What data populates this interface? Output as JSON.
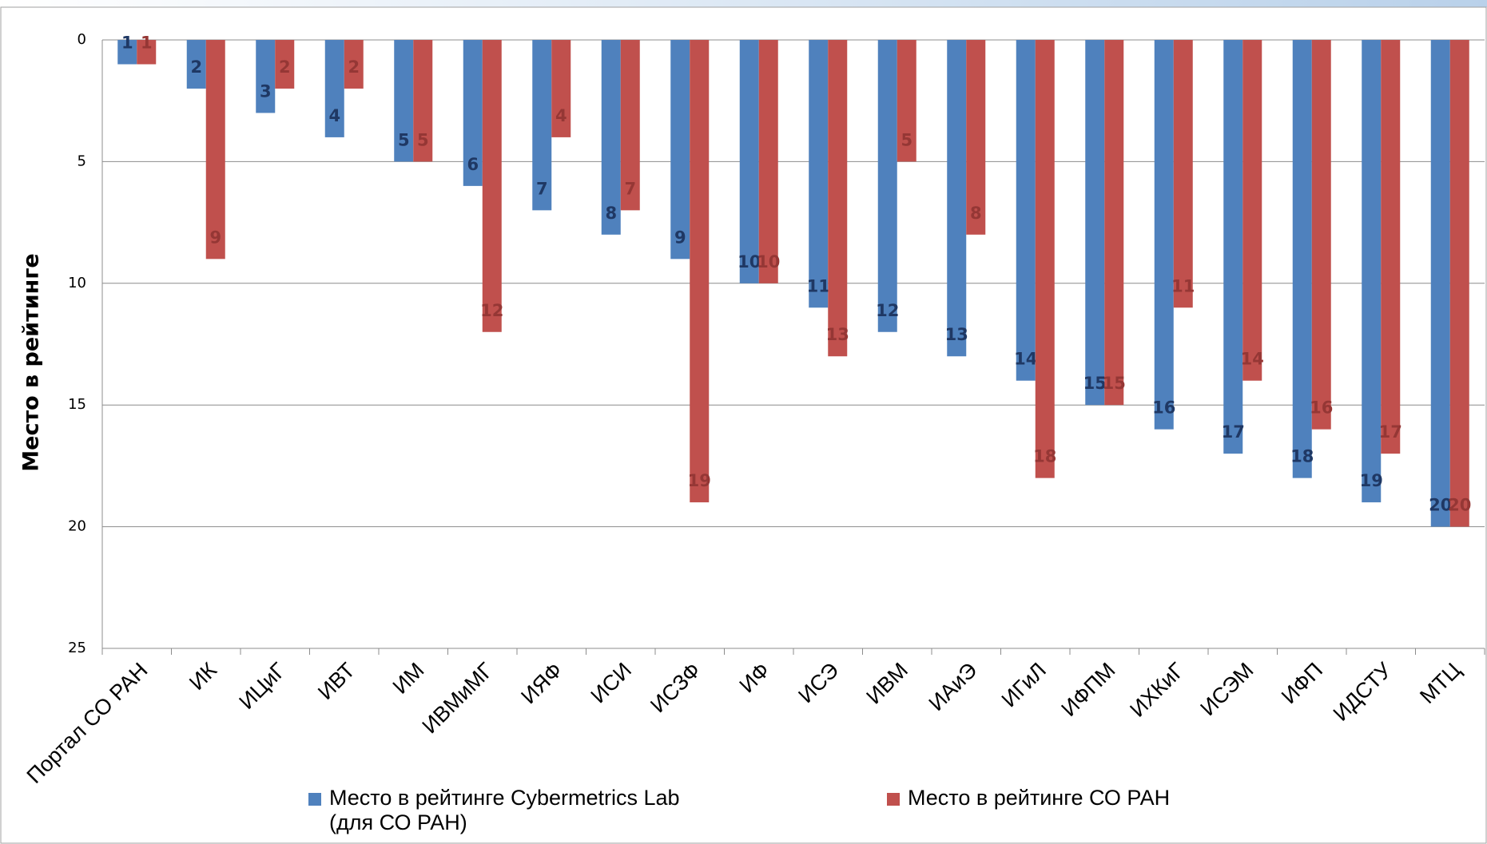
{
  "chart_data": {
    "type": "bar",
    "y_axis_label": "Место в рейтинге",
    "categories": [
      "Портал СО РАН",
      "ИК",
      "ИЦиГ",
      "ИВТ",
      "ИМ",
      "ИВМиМГ",
      "ИЯФ",
      "ИСИ",
      "ИСЗФ",
      "ИФ",
      "ИСЭ",
      "ИВМ",
      "ИАиЭ",
      "ИГиЛ",
      "ИФПМ",
      "ИХКиГ",
      "ИСЭМ",
      "ИФП",
      "ИДСТУ",
      "МТЦ"
    ],
    "series": [
      {
        "name": "Место в рейтинге Cybermetrics Lab (для СО РАН)",
        "color": "#4f81bd",
        "label_color": "#1f3864",
        "values": [
          1,
          2,
          3,
          4,
          5,
          6,
          7,
          8,
          9,
          10,
          11,
          12,
          13,
          14,
          15,
          16,
          17,
          18,
          19,
          20
        ]
      },
      {
        "name": "Место в рейтинге СО РАН",
        "color": "#c0504d",
        "label_color": "#953735",
        "values": [
          1,
          9,
          2,
          2,
          5,
          12,
          4,
          7,
          19,
          10,
          13,
          5,
          8,
          18,
          15,
          11,
          14,
          16,
          17,
          20
        ]
      }
    ],
    "ylim": [
      0,
      25
    ],
    "yticks": [
      0,
      5,
      10,
      15,
      20,
      25
    ],
    "y_inverted": true,
    "grid": true,
    "legend": "bottom"
  }
}
